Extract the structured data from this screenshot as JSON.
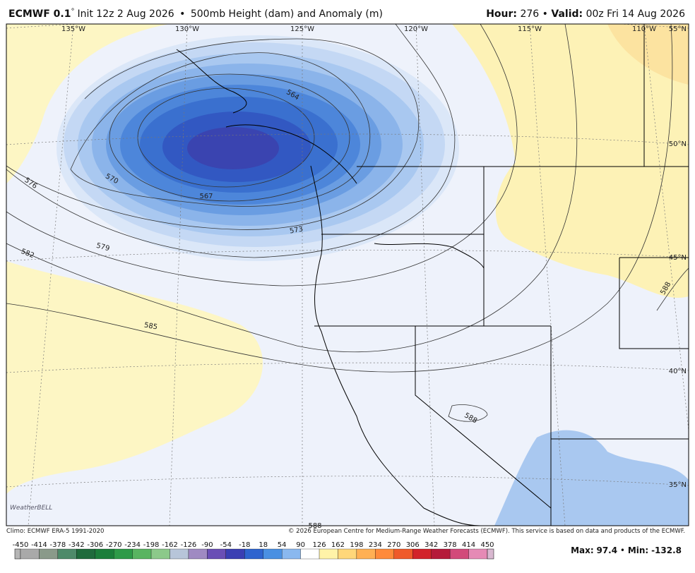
{
  "header": {
    "model": "ECMWF 0.1",
    "degree": "°",
    "init": "Init 12z 2 Aug 2026",
    "separator": "•",
    "field": "500mb Height (dam) and Anomaly (m)",
    "hour_label": "Hour:",
    "hour": "276",
    "valid_label": "Valid:",
    "valid": "00z Fri 14 Aug 2026"
  },
  "map": {
    "longitudes": [
      "135°W",
      "130°W",
      "125°W",
      "120°W",
      "115°W",
      "110°W"
    ],
    "latitudes": [
      "55°N",
      "50°N",
      "45°N",
      "40°N",
      "35°N"
    ],
    "contour_labels": [
      "564",
      "567",
      "570",
      "573",
      "576",
      "579",
      "582",
      "585",
      "588",
      "588",
      "588"
    ],
    "watermark": "WeatherBELL"
  },
  "footer": {
    "climo": "Climo: ECMWF ERA-5 1991-2020",
    "copyright": "© 2026 European Centre for Medium-Range Weather Forecasts (ECMWF). This service is based on data and products of the ECMWF."
  },
  "colorbar": {
    "ticks": [
      -450,
      -414,
      -378,
      -342,
      -306,
      -270,
      -234,
      -198,
      -162,
      -126,
      -90,
      -54,
      -18,
      18,
      54,
      90,
      126,
      162,
      198,
      234,
      270,
      306,
      342,
      378,
      414,
      450
    ],
    "colors": [
      "#a9a9a9",
      "#8a9a8a",
      "#4e8a6a",
      "#1f6b3c",
      "#1b7e3a",
      "#2e9a48",
      "#59b461",
      "#8cc98a",
      "#b7c5d9",
      "#9f8ac2",
      "#6a4fb5",
      "#3a3fb3",
      "#2e64cf",
      "#4a90e2",
      "#8ab8ef",
      "#ffffff",
      "#fff3a8",
      "#ffd77a",
      "#ffb054",
      "#ff8a3a",
      "#ef5a2a",
      "#d2232a",
      "#b51a3a",
      "#d24a7a",
      "#e58ab5"
    ]
  },
  "stats": {
    "max_label": "Max:",
    "max": 97.4,
    "min_label": "Min:",
    "min": -132.8
  }
}
